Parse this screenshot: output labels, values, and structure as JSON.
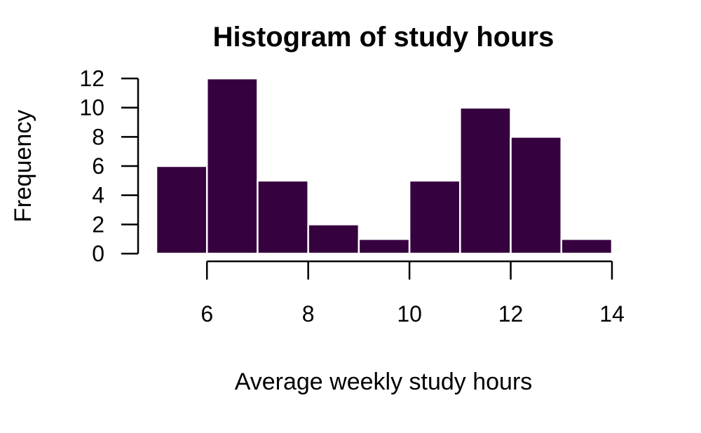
{
  "chart_data": {
    "type": "bar",
    "title": "Histogram of study hours",
    "xlabel": "Average weekly study hours",
    "ylabel": "Frequency",
    "bins": [
      {
        "start": 5,
        "end": 6,
        "count": 6
      },
      {
        "start": 6,
        "end": 7,
        "count": 12
      },
      {
        "start": 7,
        "end": 8,
        "count": 5
      },
      {
        "start": 8,
        "end": 9,
        "count": 2
      },
      {
        "start": 9,
        "end": 10,
        "count": 1
      },
      {
        "start": 10,
        "end": 11,
        "count": 5
      },
      {
        "start": 11,
        "end": 12,
        "count": 10
      },
      {
        "start": 12,
        "end": 13,
        "count": 8
      },
      {
        "start": 13,
        "end": 14,
        "count": 1
      }
    ],
    "xlim": [
      5,
      14
    ],
    "ylim": [
      0,
      12
    ],
    "xticks": [
      6,
      8,
      10,
      12,
      14
    ],
    "yticks": [
      0,
      2,
      4,
      6,
      8,
      10,
      12
    ],
    "bar_color": "#36013f",
    "bar_edge_color": "#ffffff",
    "grid": false
  }
}
